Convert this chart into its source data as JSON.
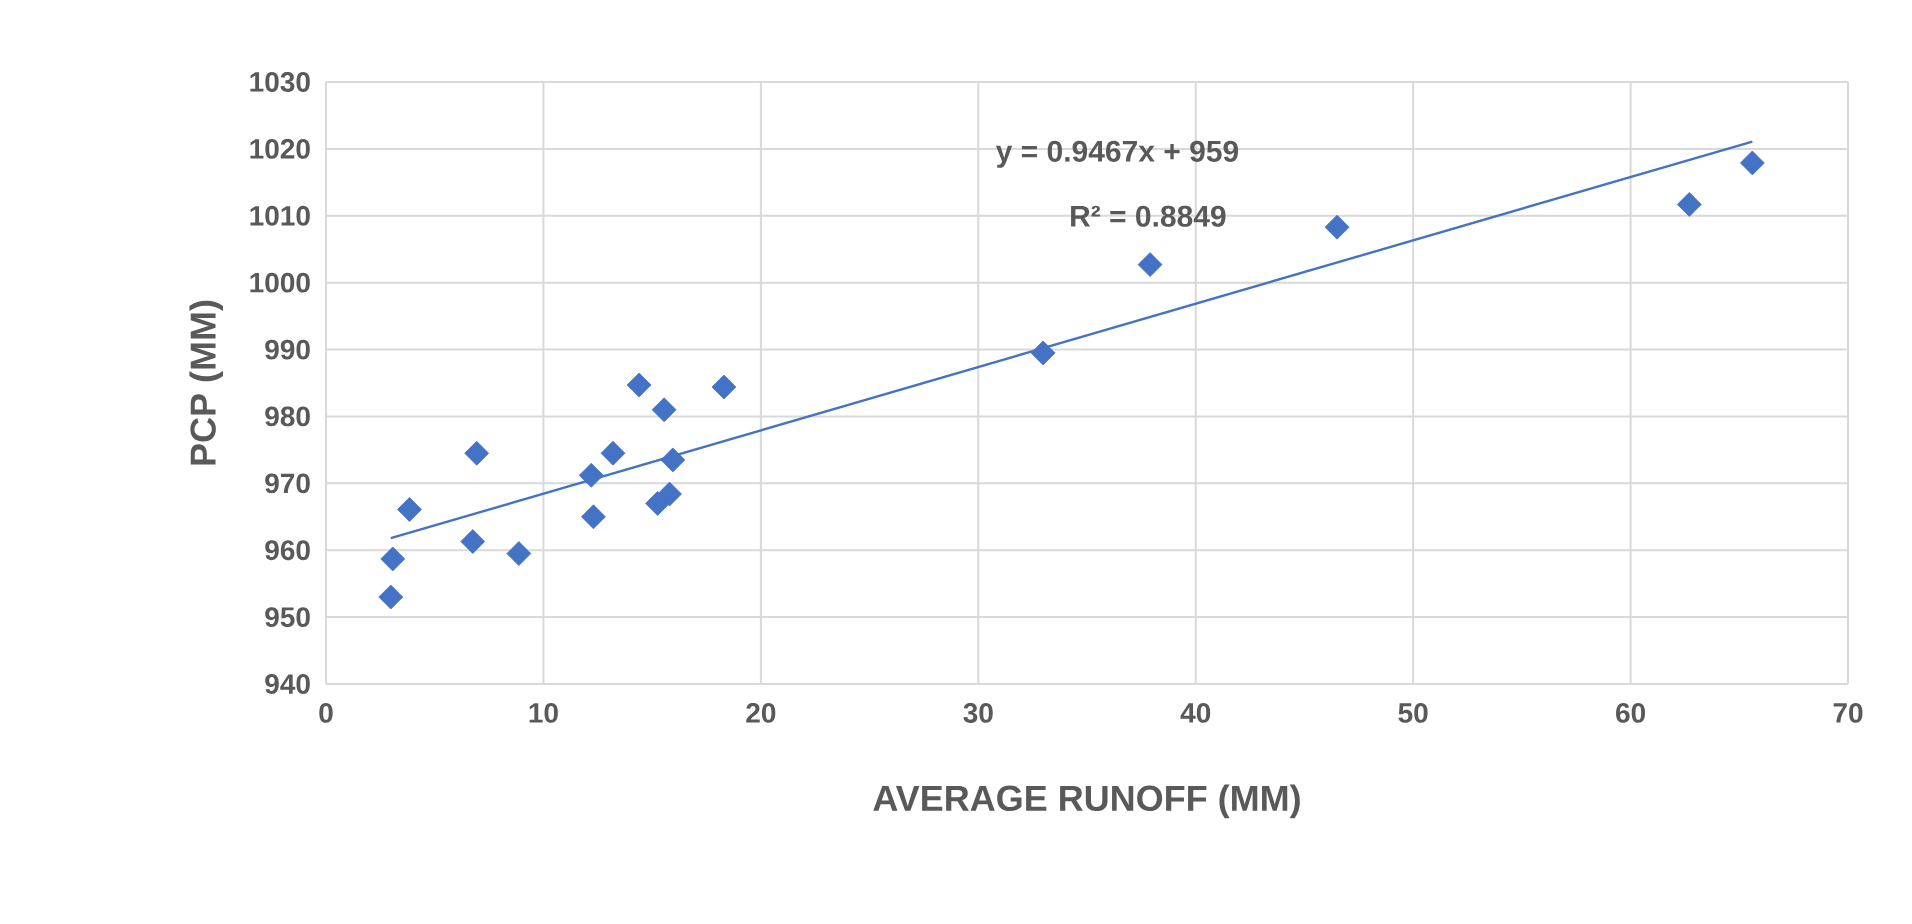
{
  "chart_data": {
    "type": "scatter",
    "xlabel": "AVERAGE RUNOFF (MM)",
    "ylabel": "PCP (MM)",
    "annotations": [
      "y = 0.9467x + 959",
      "R² = 0.8849"
    ],
    "series": [
      {
        "color": "#4472c4",
        "marker": "diamond",
        "x": [
          2.98,
          3.07,
          3.84,
          6.75,
          6.93,
          8.87,
          12.2,
          12.3,
          13.2,
          14.4,
          15.55,
          15.25,
          15.8,
          15.95,
          18.3,
          32.98,
          37.9,
          46.5,
          62.7,
          65.6
        ],
        "values": [
          953.0,
          958.7,
          966.1,
          961.3,
          974.5,
          959.5,
          971.2,
          965.0,
          974.5,
          984.7,
          981.0,
          967.0,
          968.4,
          973.5,
          984.4,
          989.5,
          1002.7,
          1008.3,
          1011.7,
          1017.9
        ]
      },
      {
        "type": "line",
        "color": "#4472c4",
        "marker": "none",
        "x": [
          2.98,
          65.6
        ],
        "values": [
          961.8,
          1021.1
        ]
      }
    ],
    "xlim": [
      0,
      70
    ],
    "ylim": [
      940,
      1030
    ],
    "xticks": [
      0,
      10,
      20,
      30,
      40,
      50,
      60,
      70
    ],
    "yticks": [
      940,
      950,
      960,
      970,
      980,
      990,
      1000,
      1010,
      1020,
      1030
    ],
    "grid": true
  }
}
